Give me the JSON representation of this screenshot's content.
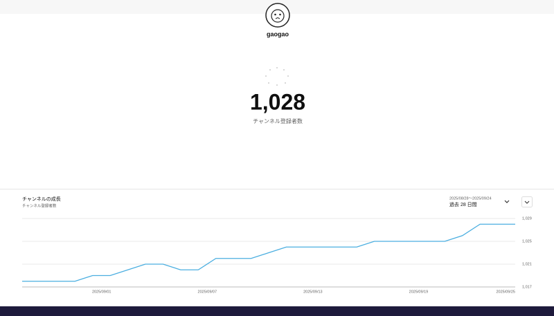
{
  "channel": {
    "name": "gaogao",
    "subscriber_count": "1,028",
    "subscriber_label": "チャンネル登録者数"
  },
  "chart_data": {
    "type": "line",
    "title": "チャンネルの成長",
    "subtitle": "チャンネル登録者数",
    "date_range": "2025/08/28～2025/09/24",
    "period": "過去 28 日間",
    "categories": [
      null,
      null,
      null,
      null,
      "2025/09/01",
      null,
      null,
      null,
      null,
      null,
      "2025/09/07",
      null,
      null,
      null,
      null,
      null,
      "2025/09/13",
      null,
      null,
      null,
      null,
      null,
      "2025/09/19",
      null,
      null,
      null,
      null,
      null,
      "2025/09/25"
    ],
    "series": [
      {
        "name": "チャンネル登録者数",
        "color": "#4aaee0",
        "values": [
          1018,
          1018,
          1018,
          1018,
          1019,
          1019,
          1020,
          1021,
          1021,
          1020,
          1020,
          1022,
          1022,
          1022,
          1023,
          1024,
          1024,
          1024,
          1024,
          1024,
          1025,
          1025,
          1025,
          1025,
          1025,
          1026,
          1028,
          1028,
          1028
        ]
      }
    ],
    "ylim": [
      1017,
      1029
    ],
    "yticks": [
      {
        "value": 1017,
        "label": "1,017"
      },
      {
        "value": 1021,
        "label": "1,021"
      },
      {
        "value": 1025,
        "label": "1,025"
      },
      {
        "value": 1029,
        "label": "1,029"
      }
    ],
    "grid": true
  }
}
